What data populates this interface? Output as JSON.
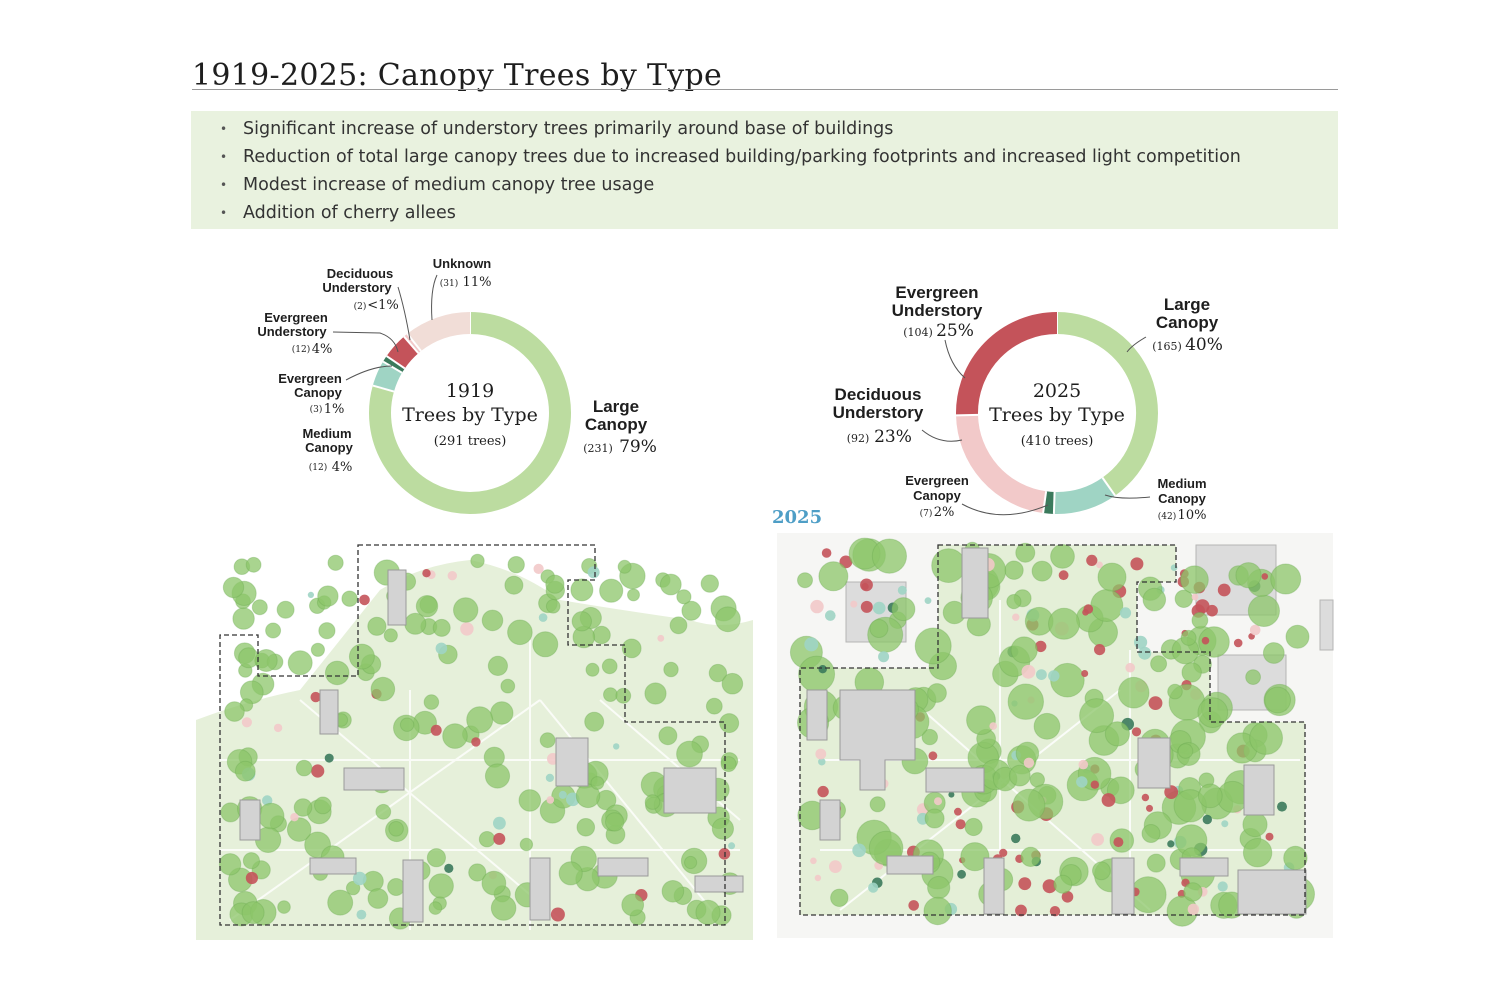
{
  "title": "1919-2025: Canopy Trees by Type",
  "bullets": [
    "Significant increase of understory trees primarily around base of buildings",
    "Reduction of total large canopy trees due to increased building/parking footprints and increased light competition",
    "Modest increase of medium canopy tree usage",
    "Addition of cherry allees"
  ],
  "map_label_2025": "2025",
  "colors": {
    "large_canopy": "#bcdca0",
    "medium_canopy": "#9fd4c4",
    "evergreen_canopy": "#3b7a5c",
    "evergreen_understory": "#c4535a",
    "deciduous_understory": "#f2c9c9",
    "unknown": "#f1ddd7",
    "map_green": "#8cc56a",
    "map_ground": "#e6f0da"
  },
  "chart_data": [
    {
      "type": "pie",
      "variant": "donut",
      "center": {
        "year": "1919",
        "subtitle": "Trees by Type",
        "total": "(291 trees)"
      },
      "slices": [
        {
          "key": "large_canopy",
          "name": "Large Canopy",
          "count": 231,
          "count_label": "(231)",
          "percent_label": "79%"
        },
        {
          "key": "medium_canopy",
          "name": "Medium Canopy",
          "count": 12,
          "count_label": "(12)",
          "percent_label": "4%"
        },
        {
          "key": "evergreen_canopy",
          "name": "Evergreen Canopy",
          "count": 3,
          "count_label": "(3)",
          "percent_label": "1%"
        },
        {
          "key": "evergreen_understory",
          "name": "Evergreen Understory",
          "count": 12,
          "count_label": "(12)",
          "percent_label": "4%"
        },
        {
          "key": "deciduous_understory",
          "name": "Deciduous Understory",
          "count": 2,
          "count_label": "(2)",
          "percent_label": "<1%"
        },
        {
          "key": "unknown",
          "name": "Unknown",
          "count": 31,
          "count_label": "(31)",
          "percent_label": "11%"
        }
      ]
    },
    {
      "type": "pie",
      "variant": "donut",
      "center": {
        "year": "2025",
        "subtitle": "Trees by Type",
        "total": "(410 trees)"
      },
      "slices": [
        {
          "key": "large_canopy",
          "name": "Large Canopy",
          "count": 165,
          "count_label": "(165)",
          "percent_label": "40%"
        },
        {
          "key": "medium_canopy",
          "name": "Medium Canopy",
          "count": 42,
          "count_label": "(42)",
          "percent_label": "10%"
        },
        {
          "key": "evergreen_canopy",
          "name": "Evergreen Canopy",
          "count": 7,
          "count_label": "(7)",
          "percent_label": "2%"
        },
        {
          "key": "deciduous_understory",
          "name": "Deciduous Understory",
          "count": 92,
          "count_label": "(92)",
          "percent_label": "23%"
        },
        {
          "key": "evergreen_understory",
          "name": "Evergreen Understory",
          "count": 104,
          "count_label": "(104)",
          "percent_label": "25%"
        }
      ]
    }
  ]
}
